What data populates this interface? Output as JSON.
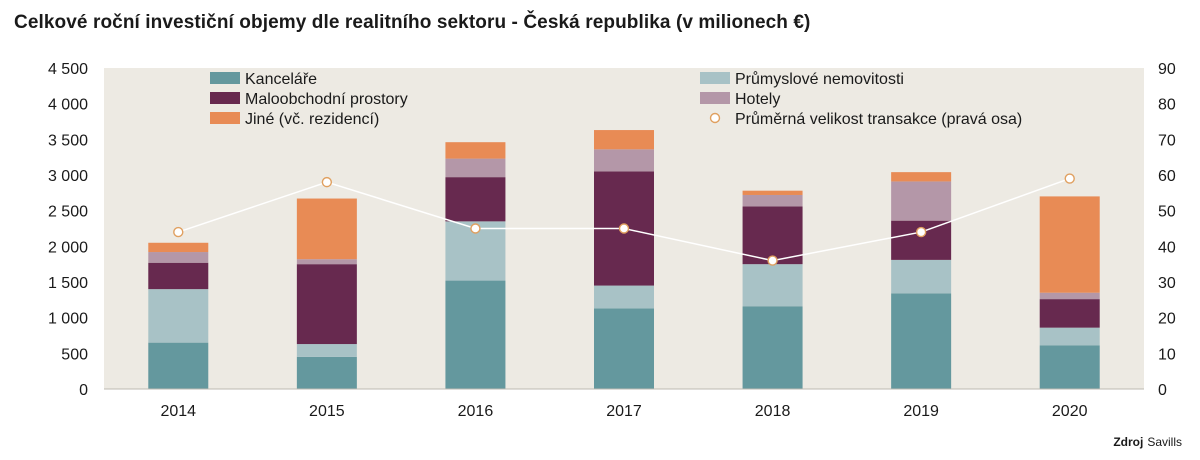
{
  "title": "Celkové roční investiční objemy dle realitního sektoru - Česká republika (v milionech €)",
  "source": {
    "label": "Zdroj",
    "value": "Savills"
  },
  "chart_data": {
    "type": "bar",
    "stacked": true,
    "categories": [
      "2014",
      "2015",
      "2016",
      "2017",
      "2018",
      "2019",
      "2020"
    ],
    "ylim": [
      0,
      4500
    ],
    "y_ticks": [
      0,
      500,
      1000,
      1500,
      2000,
      2500,
      3000,
      3500,
      4000,
      4500
    ],
    "y_tick_labels": [
      "0",
      "500",
      "1 000",
      "1 500",
      "2 000",
      "2 500",
      "3 000",
      "3 500",
      "4 000",
      "4 500"
    ],
    "y2lim": [
      0,
      90
    ],
    "y2_ticks": [
      0,
      10,
      20,
      30,
      40,
      50,
      60,
      70,
      80,
      90
    ],
    "y2_tick_labels": [
      "0",
      "10",
      "20",
      "30",
      "40",
      "50",
      "60",
      "70",
      "80",
      "90"
    ],
    "grid": false,
    "legend_position": "top",
    "series": [
      {
        "name": "Kanceláře",
        "color": "#64989e",
        "values": [
          650,
          450,
          1520,
          1130,
          1160,
          1340,
          610
        ]
      },
      {
        "name": "Průmyslové nemovitosti",
        "color": "#a8c2c6",
        "values": [
          750,
          180,
          830,
          320,
          590,
          470,
          250
        ]
      },
      {
        "name": "Maloobchodní prostory",
        "color": "#67294f",
        "values": [
          370,
          1120,
          620,
          1600,
          810,
          550,
          400
        ]
      },
      {
        "name": "Hotely",
        "color": "#b497a8",
        "values": [
          150,
          70,
          260,
          310,
          160,
          550,
          90
        ]
      },
      {
        "name": "Jiné (vč. rezidencí)",
        "color": "#e88b55",
        "values": [
          130,
          850,
          230,
          270,
          60,
          130,
          1350
        ]
      }
    ],
    "line_series": {
      "name": "Průměrná velikost transakce (pravá osa)",
      "axis": "right",
      "values": [
        44,
        58,
        45,
        45,
        36,
        44,
        59
      ]
    },
    "background_color": "#edeae3"
  }
}
